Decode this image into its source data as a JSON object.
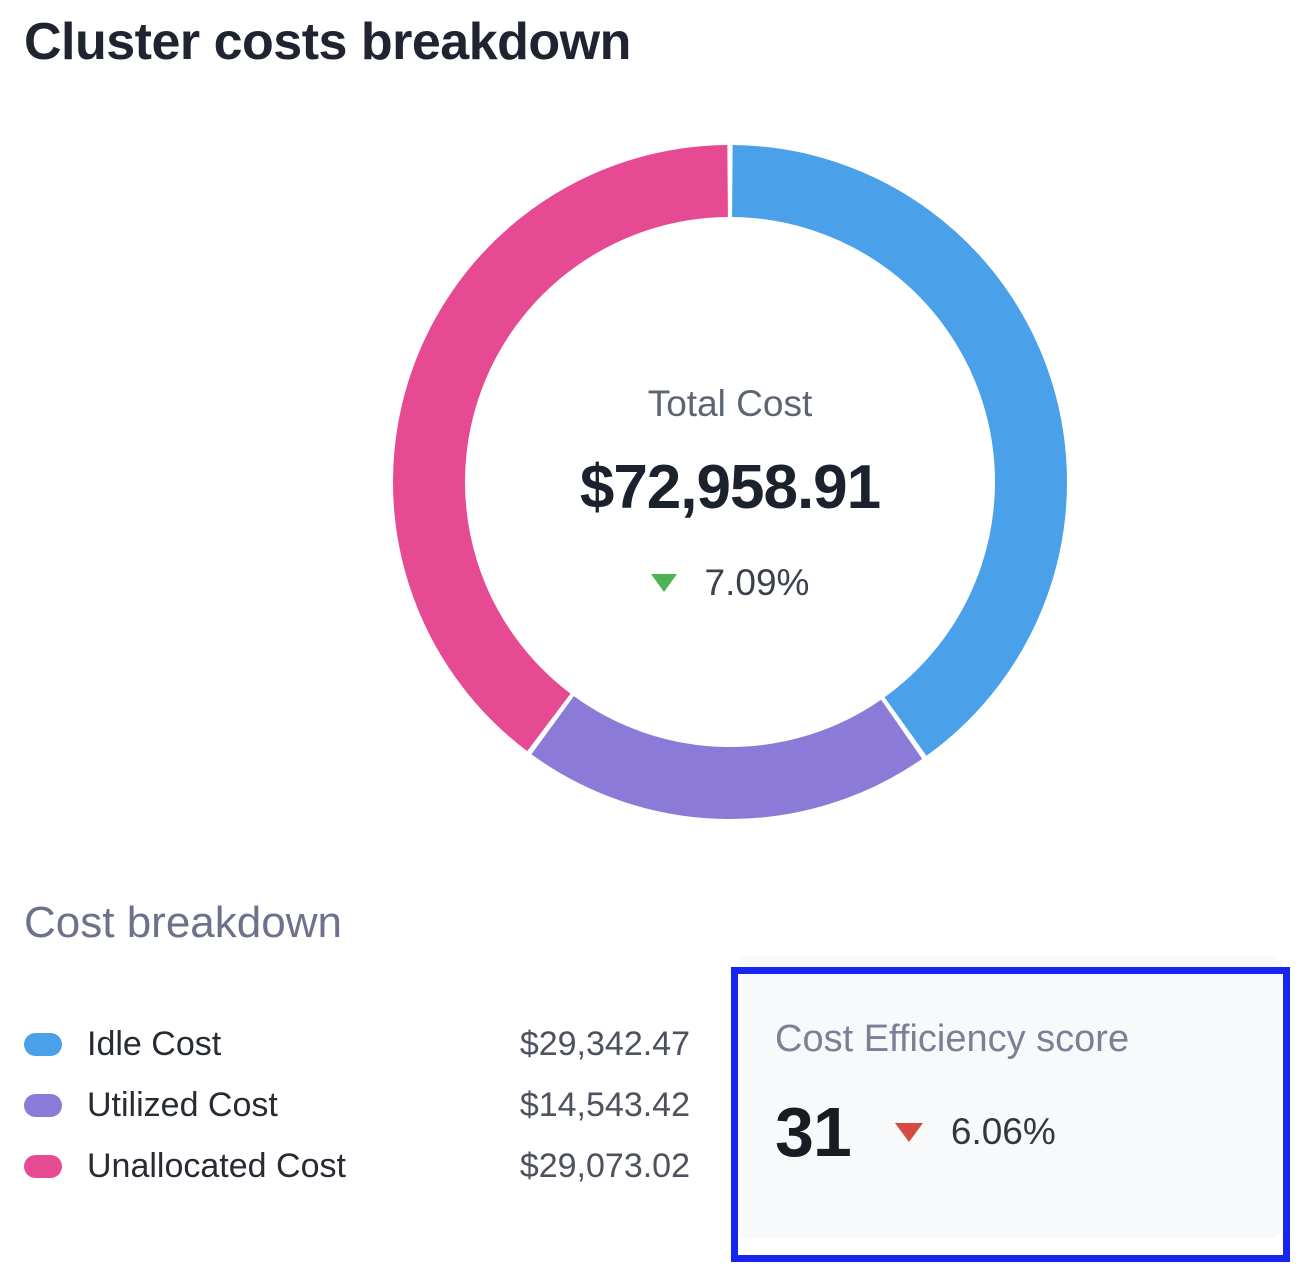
{
  "page": {
    "title": "Cluster costs breakdown",
    "background": "#ffffff"
  },
  "chart_data": {
    "type": "pie",
    "subtype": "donut",
    "title": "Cluster costs breakdown",
    "center": {
      "label": "Total Cost",
      "value": "$72,958.91",
      "delta": "7.09%",
      "delta_direction": "down",
      "delta_color": "#4fb256"
    },
    "total": 72958.91,
    "segments": [
      {
        "name": "Idle Cost",
        "value": 29342.47,
        "display": "$29,342.47",
        "color": "#4aa0e9",
        "percent": 40.22
      },
      {
        "name": "Utilized Cost",
        "value": 14543.42,
        "display": "$14,543.42",
        "color": "#8c7ad8",
        "percent": 19.93
      },
      {
        "name": "Unallocated Cost",
        "value": 29073.02,
        "display": "$29,073.02",
        "color": "#e64a93",
        "percent": 39.85
      }
    ],
    "start_angle_deg": 0,
    "clockwise": true,
    "gap_deg": 0.9,
    "legend_position": "bottom-left"
  },
  "breakdown": {
    "heading": "Cost breakdown"
  },
  "efficiency": {
    "heading": "Cost Efficiency score",
    "score": "31",
    "delta": "6.06%",
    "delta_direction": "down",
    "delta_color": "#d64b3f",
    "highlight_border_color": "#1626f0",
    "card_background": "#f8f9fb"
  }
}
